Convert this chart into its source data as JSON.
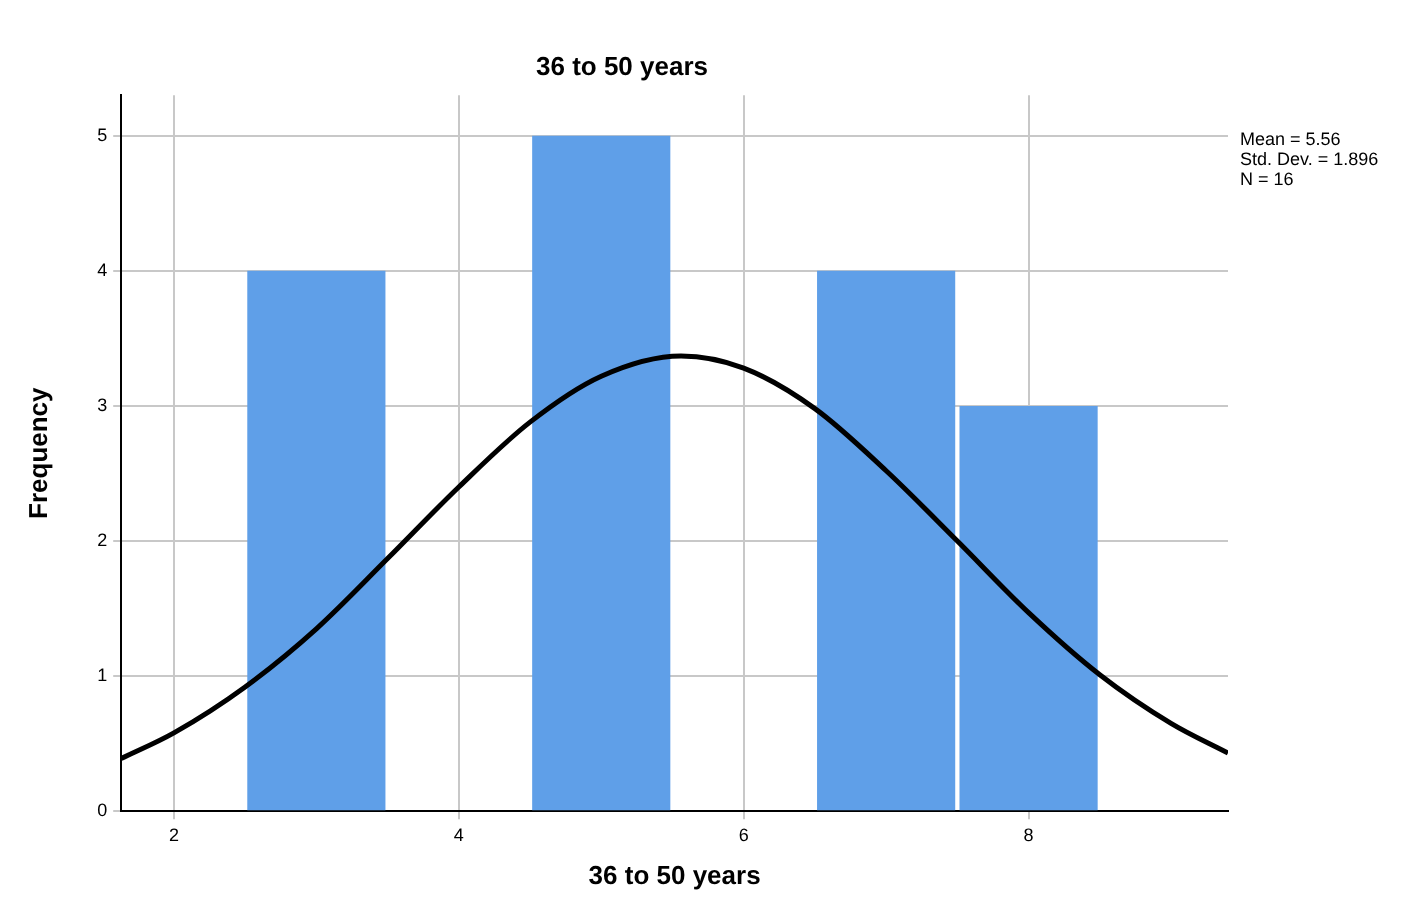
{
  "chart_data": {
    "type": "histogram",
    "title": "36 to 50 years",
    "xlabel": "36 to 50 years",
    "ylabel": "Frequency",
    "bins": [
      2.5,
      3.5,
      4.5,
      5.5,
      6.5,
      7.5,
      8.5
    ],
    "values": [
      4,
      0,
      5,
      0,
      4,
      3
    ],
    "color": "#5f9fe8",
    "series": [
      {
        "type": "line",
        "color": "#000000",
        "x": [
          1.63,
          2,
          2.5,
          3,
          3.5,
          4,
          4.5,
          5,
          5.56,
          6,
          6.5,
          7,
          7.5,
          8,
          8.5,
          9,
          9.4
        ],
        "values": [
          0.39,
          0.58,
          0.92,
          1.35,
          1.87,
          2.4,
          2.88,
          3.22,
          3.37,
          3.28,
          2.98,
          2.52,
          2.0,
          1.47,
          1.01,
          0.65,
          0.43
        ]
      }
    ],
    "xlim": [
      1.63,
      9.4
    ],
    "xticks": [
      2,
      4,
      6,
      8
    ],
    "ylim": [
      0,
      5.3
    ],
    "yticks": [
      0,
      1,
      2,
      3,
      4,
      5
    ],
    "grid": true,
    "legend": false,
    "marker": "none",
    "line_style": "solid",
    "annotations": [
      "Mean = 5.56",
      "Std. Dev. = 1.896",
      "N = 16"
    ]
  }
}
